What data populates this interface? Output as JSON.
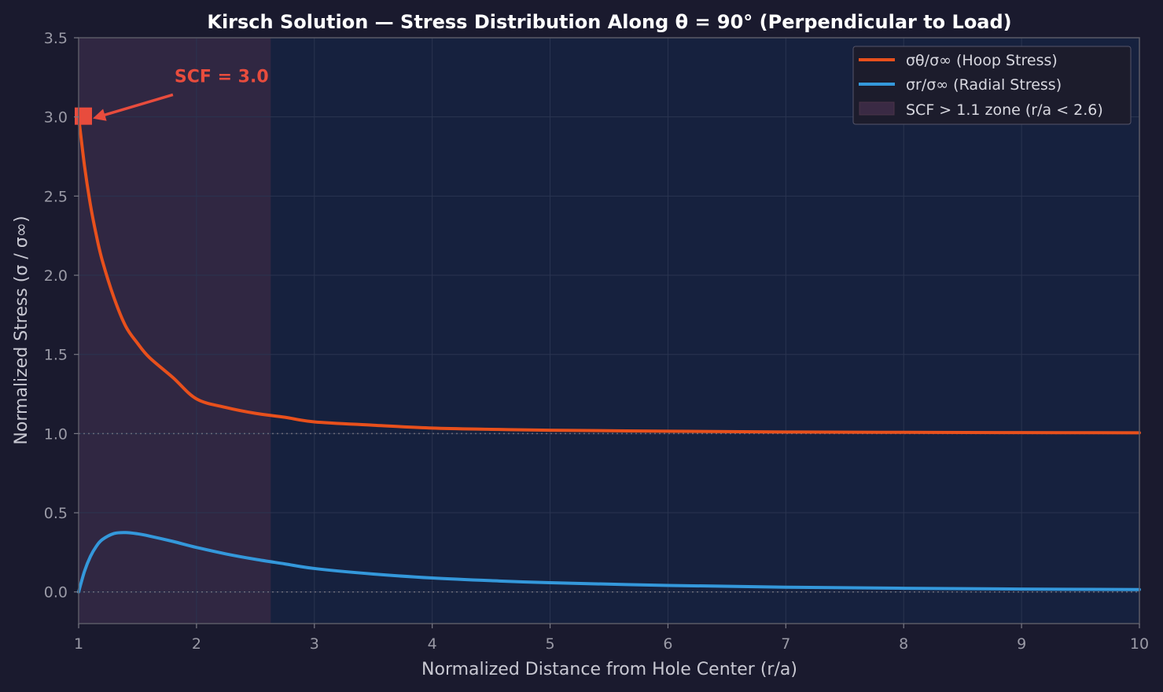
{
  "chart_data": {
    "type": "line",
    "title": "Kirsch Solution — Stress Distribution Along θ = 90° (Perpendicular to Load)",
    "xlabel": "Normalized Distance from Hole Center (r/a)",
    "ylabel": "Normalized Stress (σ / σ∞)",
    "xlim": [
      1,
      10
    ],
    "ylim": [
      -0.2,
      3.5
    ],
    "xticks": [
      "1",
      "2",
      "3",
      "4",
      "5",
      "6",
      "7",
      "8",
      "9",
      "10"
    ],
    "yticks": [
      "0.0",
      "0.5",
      "1.0",
      "1.5",
      "2.0",
      "2.5",
      "3.0",
      "3.5"
    ],
    "grid": true,
    "legend_position": "top-right",
    "reference_lines": [
      1.0,
      0.0
    ],
    "x": [
      1.0,
      1.05,
      1.1,
      1.15,
      1.2,
      1.3,
      1.4,
      1.5,
      1.6,
      1.8,
      2.0,
      2.25,
      2.5,
      2.75,
      3.0,
      3.5,
      4.0,
      4.5,
      5.0,
      6.0,
      7.0,
      8.0,
      9.0,
      10.0
    ],
    "series": [
      {
        "name": "σθ/σ∞ (Hoop Stress)",
        "color": "#e8501c",
        "values": [
          3.0,
          2.69,
          2.445,
          2.253,
          2.095,
          1.858,
          1.677,
          1.57,
          1.481,
          1.354,
          1.219,
          1.165,
          1.128,
          1.103,
          1.074,
          1.053,
          1.035,
          1.027,
          1.021,
          1.015,
          1.01,
          1.008,
          1.006,
          1.005
        ]
      },
      {
        "name": "σr/σ∞ (Radial Stress)",
        "color": "#3498db",
        "values": [
          0.0,
          0.131,
          0.224,
          0.288,
          0.33,
          0.369,
          0.375,
          0.367,
          0.353,
          0.319,
          0.281,
          0.24,
          0.206,
          0.177,
          0.148,
          0.113,
          0.088,
          0.071,
          0.058,
          0.041,
          0.03,
          0.023,
          0.018,
          0.015
        ]
      }
    ],
    "shaded_zone": {
      "label": "SCF > 1.1 zone (r/a < 2.6)",
      "x_range": [
        1,
        2.63
      ],
      "color": "#3a2a44"
    },
    "annotation": {
      "text": "SCF = 3.0",
      "point": [
        1.0,
        3.0
      ],
      "text_at": [
        1.8,
        3.15
      ],
      "color": "#e84c3d"
    }
  }
}
